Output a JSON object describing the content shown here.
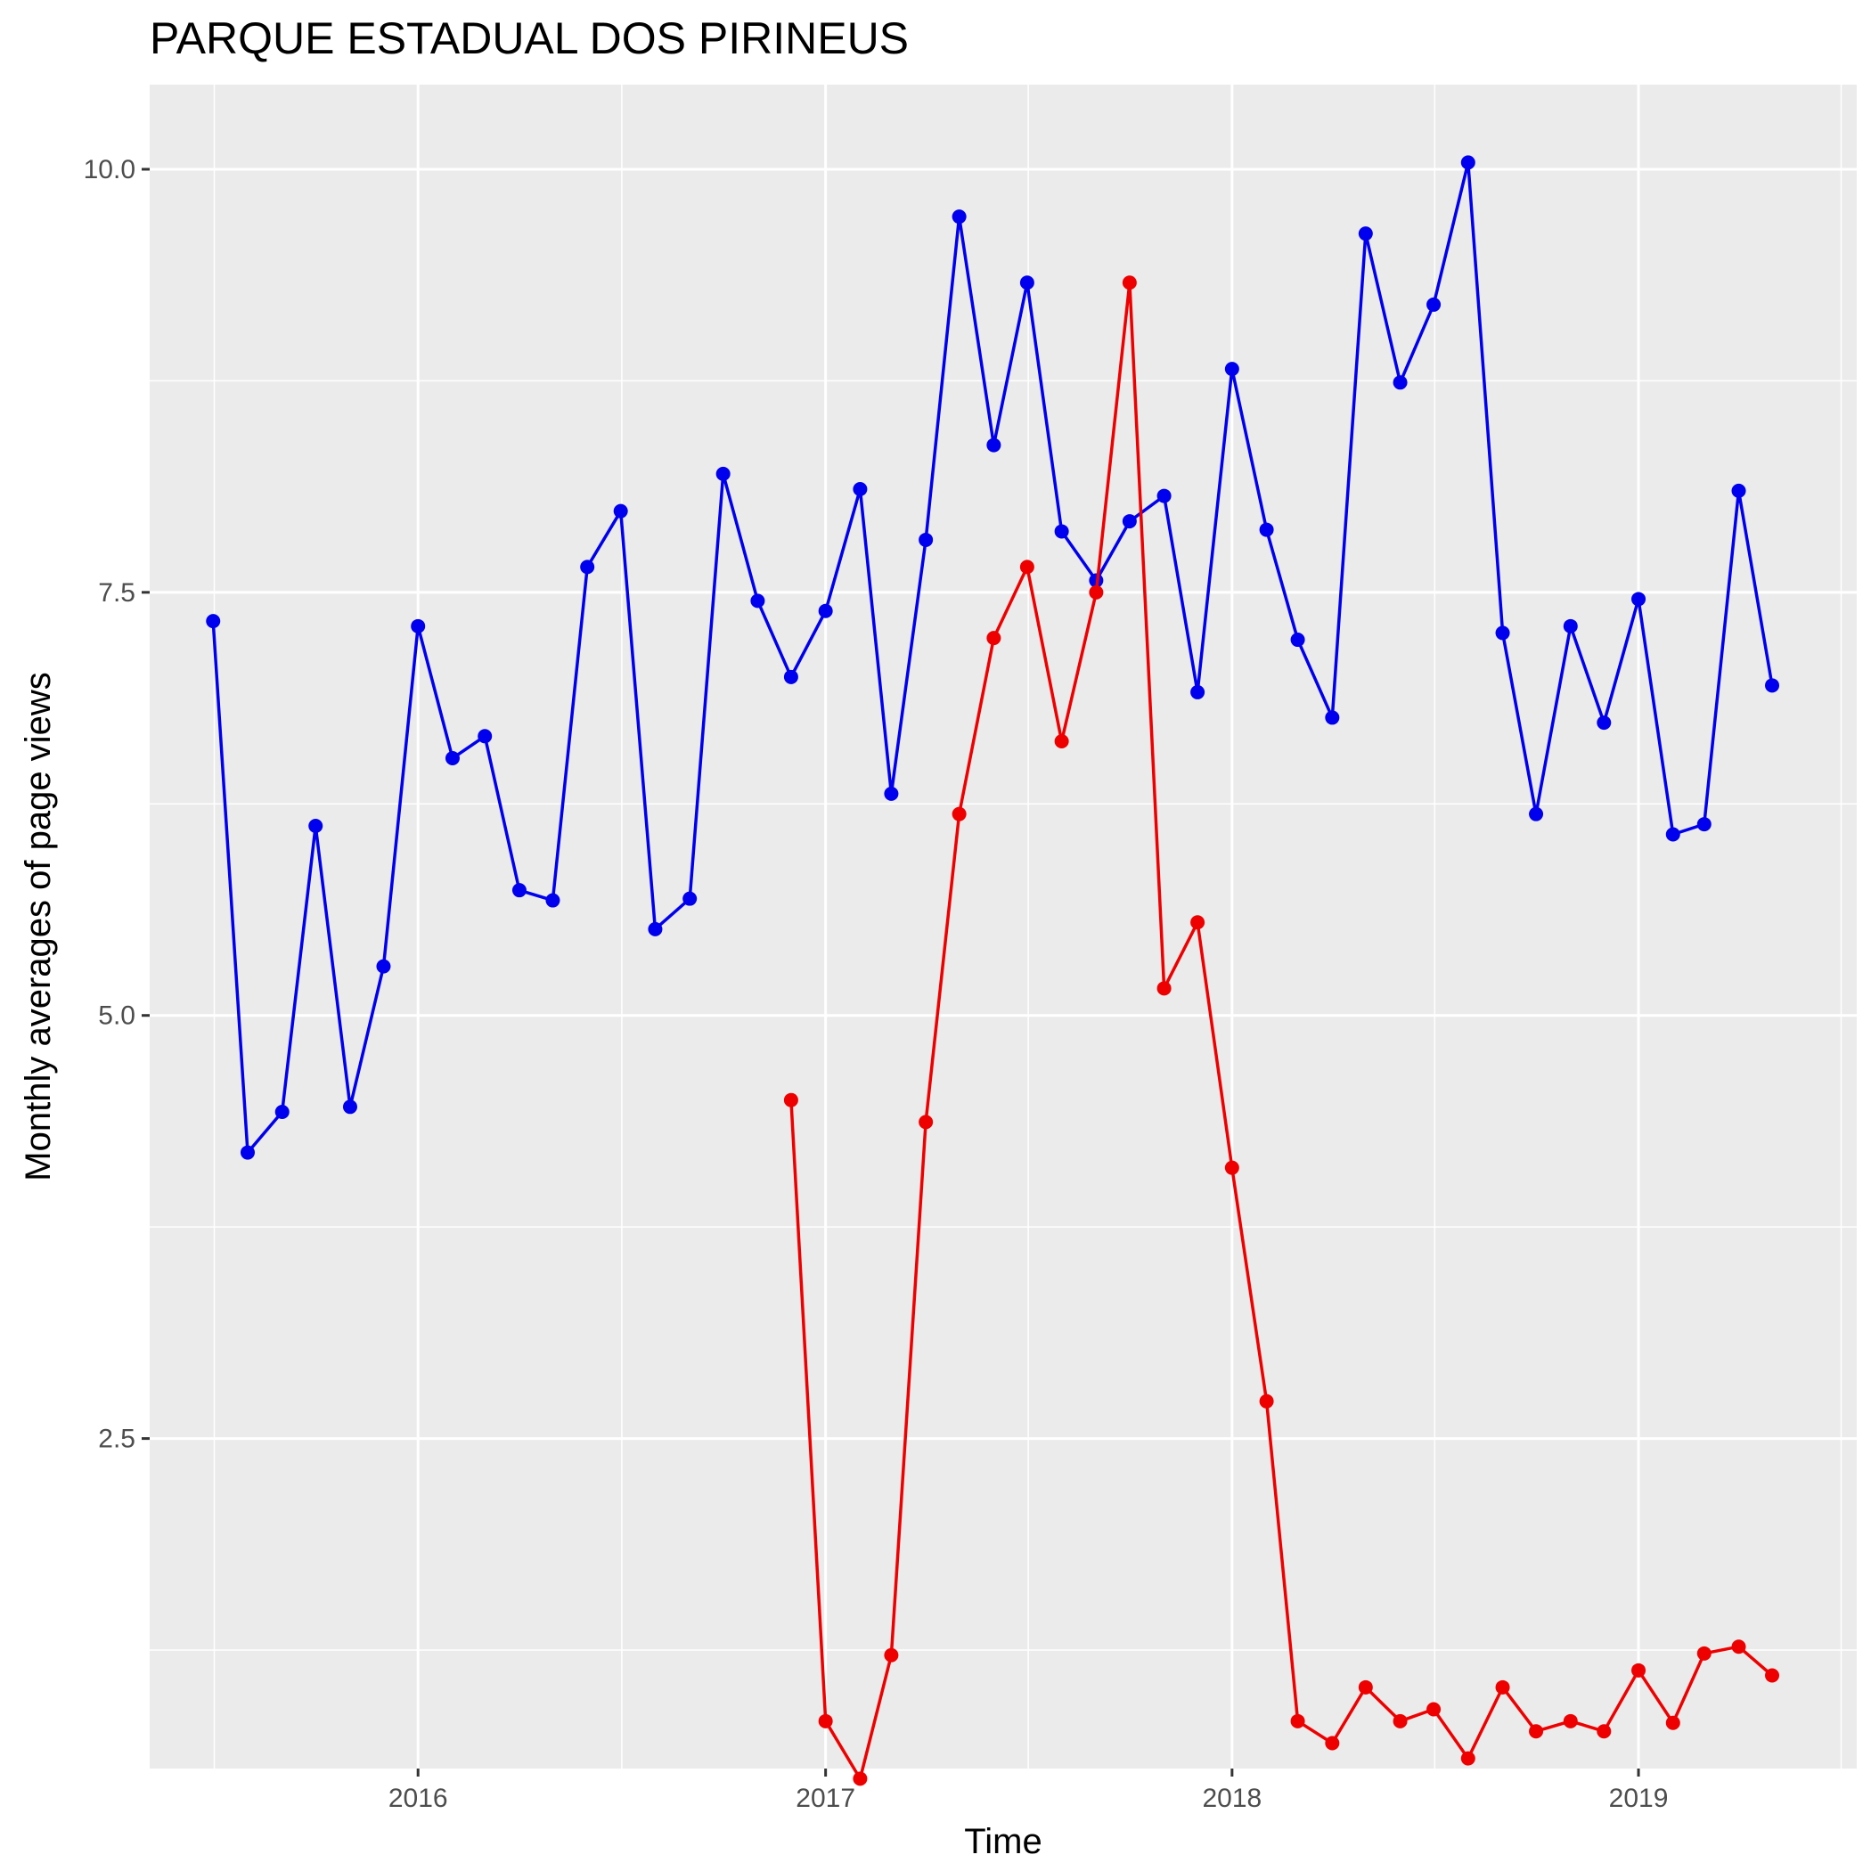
{
  "chart_data": {
    "type": "line",
    "title": "PARQUE ESTADUAL DOS PIRINEUS",
    "xlabel": "Time",
    "ylabel": "Monthly averages of page views",
    "x_ticks": [
      "2016",
      "2017",
      "2018",
      "2019"
    ],
    "y_ticks": [
      "2.5",
      "5.0",
      "7.5",
      "10.0"
    ],
    "xlim": [
      "2015-05-05",
      "2019-07-16"
    ],
    "ylim": [
      0.55,
      10.5
    ],
    "grid": true,
    "legend": "none",
    "series": [
      {
        "color": "#0000ee",
        "x": [
          "2015-07-01",
          "2015-08-01",
          "2015-09-01",
          "2015-10-01",
          "2015-11-01",
          "2015-12-01",
          "2016-01-01",
          "2016-02-01",
          "2016-03-01",
          "2016-04-01",
          "2016-05-01",
          "2016-06-01",
          "2016-07-01",
          "2016-08-01",
          "2016-09-01",
          "2016-10-01",
          "2016-11-01",
          "2016-12-01",
          "2017-01-01",
          "2017-02-01",
          "2017-03-01",
          "2017-04-01",
          "2017-05-01",
          "2017-06-01",
          "2017-07-01",
          "2017-08-01",
          "2017-09-01",
          "2017-10-01",
          "2017-11-01",
          "2017-12-01",
          "2018-01-01",
          "2018-02-01",
          "2018-03-01",
          "2018-04-01",
          "2018-05-01",
          "2018-06-01",
          "2018-07-01",
          "2018-08-01",
          "2018-09-01",
          "2018-10-01",
          "2018-11-01",
          "2018-12-01",
          "2019-01-01",
          "2019-02-01",
          "2019-03-01",
          "2019-04-01",
          "2019-05-01"
        ],
        "values": [
          7.33,
          4.19,
          4.43,
          6.12,
          4.46,
          5.29,
          7.3,
          6.52,
          6.65,
          5.74,
          5.68,
          7.65,
          7.98,
          5.51,
          5.69,
          8.2,
          7.45,
          7.0,
          7.39,
          8.11,
          6.31,
          7.81,
          9.72,
          8.37,
          9.33,
          7.86,
          7.57,
          7.92,
          8.07,
          6.91,
          8.82,
          7.87,
          7.22,
          6.76,
          9.62,
          8.74,
          9.2,
          10.04,
          7.26,
          6.19,
          7.3,
          6.73,
          7.46,
          6.07,
          6.13,
          8.1,
          6.95
        ]
      },
      {
        "color": "#ee0000",
        "x": [
          "2016-12-01",
          "2017-01-01",
          "2017-02-01",
          "2017-03-01",
          "2017-04-01",
          "2017-05-01",
          "2017-06-01",
          "2017-07-01",
          "2017-08-01",
          "2017-09-01",
          "2017-10-01",
          "2017-11-01",
          "2017-12-01",
          "2018-01-01",
          "2018-02-01",
          "2018-03-01",
          "2018-04-01",
          "2018-05-01",
          "2018-06-01",
          "2018-07-01",
          "2018-08-01",
          "2018-09-01",
          "2018-10-01",
          "2018-11-01",
          "2018-12-01",
          "2019-01-01",
          "2019-02-01",
          "2019-03-01",
          "2019-04-01",
          "2019-05-01"
        ],
        "values": [
          4.5,
          0.83,
          0.49,
          1.22,
          4.37,
          6.19,
          7.23,
          7.65,
          6.62,
          7.5,
          9.33,
          5.16,
          5.55,
          4.1,
          2.72,
          0.83,
          0.7,
          1.03,
          0.83,
          0.9,
          0.61,
          1.03,
          0.77,
          0.83,
          0.77,
          1.13,
          0.82,
          1.23,
          1.27,
          1.1
        ]
      }
    ]
  }
}
